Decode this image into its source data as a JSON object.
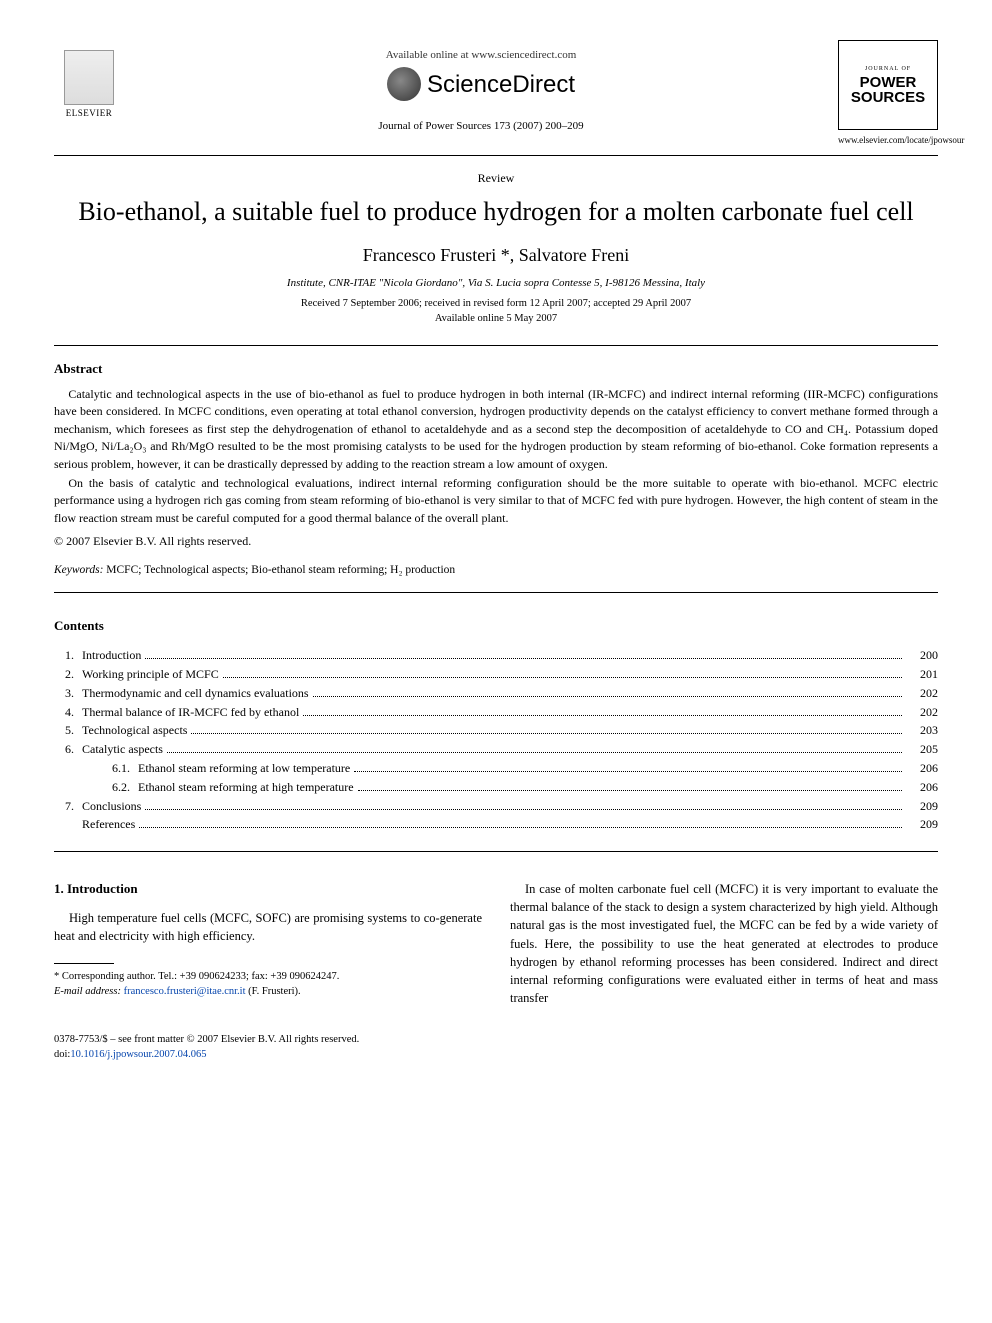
{
  "header": {
    "available_text": "Available online at www.sciencedirect.com",
    "sciencedirect": "ScienceDirect",
    "journal_ref": "Journal of Power Sources 173 (2007) 200–209",
    "elsevier_label": "ELSEVIER",
    "journal_box_top": "JOURNAL OF",
    "journal_box_title1": "POWER",
    "journal_box_title2": "SOURCES",
    "journal_url": "www.elsevier.com/locate/jpowsour"
  },
  "article": {
    "type": "Review",
    "title": "Bio-ethanol, a suitable fuel to produce hydrogen for a molten carbonate fuel cell",
    "authors": "Francesco Frusteri *, Salvatore Freni",
    "affiliation": "Institute, CNR-ITAE \"Nicola Giordano\", Via S. Lucia sopra Contesse 5, I-98126 Messina, Italy",
    "dates_line1": "Received 7 September 2006; received in revised form 12 April 2007; accepted 29 April 2007",
    "dates_line2": "Available online 5 May 2007"
  },
  "abstract": {
    "heading": "Abstract",
    "p1": "Catalytic and technological aspects in the use of bio-ethanol as fuel to produce hydrogen in both internal (IR-MCFC) and indirect internal reforming (IIR-MCFC) configurations have been considered. In MCFC conditions, even operating at total ethanol conversion, hydrogen productivity depends on the catalyst efficiency to convert methane formed through a mechanism, which foresees as first step the dehydrogenation of ethanol to acetaldehyde and as a second step the decomposition of acetaldehyde to CO and CH₄. Potassium doped Ni/MgO, Ni/La₂O₃ and Rh/MgO resulted to be the most promising catalysts to be used for the hydrogen production by steam reforming of bio-ethanol. Coke formation represents a serious problem, however, it can be drastically depressed by adding to the reaction stream a low amount of oxygen.",
    "p2": "On the basis of catalytic and technological evaluations, indirect internal reforming configuration should be the more suitable to operate with bio-ethanol. MCFC electric performance using a hydrogen rich gas coming from steam reforming of bio-ethanol is very similar to that of MCFC fed with pure hydrogen. However, the high content of steam in the flow reaction stream must be careful computed for a good thermal balance of the overall plant.",
    "copyright": "© 2007 Elsevier B.V. All rights reserved."
  },
  "keywords": {
    "label": "Keywords:",
    "text": "MCFC; Technological aspects; Bio-ethanol steam reforming; H₂ production"
  },
  "contents": {
    "heading": "Contents",
    "items": [
      {
        "num": "1.",
        "label": "Introduction",
        "page": "200",
        "sub": false
      },
      {
        "num": "2.",
        "label": "Working principle of MCFC",
        "page": "201",
        "sub": false
      },
      {
        "num": "3.",
        "label": "Thermodynamic and cell dynamics evaluations",
        "page": "202",
        "sub": false
      },
      {
        "num": "4.",
        "label": "Thermal balance of IR-MCFC fed by ethanol",
        "page": "202",
        "sub": false
      },
      {
        "num": "5.",
        "label": "Technological aspects",
        "page": "203",
        "sub": false
      },
      {
        "num": "6.",
        "label": "Catalytic aspects",
        "page": "205",
        "sub": false
      },
      {
        "num": "6.1.",
        "label": "Ethanol steam reforming at low temperature",
        "page": "206",
        "sub": true
      },
      {
        "num": "6.2.",
        "label": "Ethanol steam reforming at high temperature",
        "page": "206",
        "sub": true
      },
      {
        "num": "7.",
        "label": "Conclusions",
        "page": "209",
        "sub": false
      },
      {
        "num": "",
        "label": "References",
        "page": "209",
        "sub": false
      }
    ]
  },
  "body": {
    "section_heading": "1.  Introduction",
    "col1_p1": "High temperature fuel cells (MCFC, SOFC) are promising systems to co-generate heat and electricity with high efficiency.",
    "col2_p1": "In case of molten carbonate fuel cell (MCFC) it is very important to evaluate the thermal balance of the stack to design a system characterized by high yield. Although natural gas is the most investigated fuel, the MCFC can be fed by a wide variety of fuels. Here, the possibility to use the heat generated at electrodes to produce hydrogen by ethanol reforming processes has been considered. Indirect and direct internal reforming configurations were evaluated either in terms of heat and mass transfer"
  },
  "footnote": {
    "corr": "* Corresponding author. Tel.: +39 090624233; fax: +39 090624247.",
    "email_label": "E-mail address:",
    "email": "francesco.frusteri@itae.cnr.it",
    "email_suffix": "(F. Frusteri)."
  },
  "footer": {
    "line1": "0378-7753/$ – see front matter © 2007 Elsevier B.V. All rights reserved.",
    "doi_prefix": "doi:",
    "doi": "10.1016/j.jpowsour.2007.04.065"
  }
}
